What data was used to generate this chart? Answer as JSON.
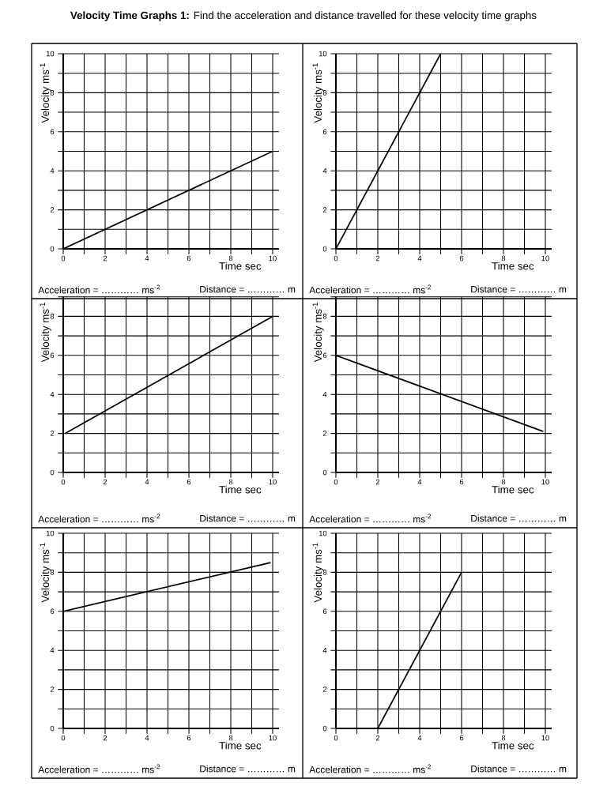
{
  "chart_data": [
    {
      "type": "line",
      "title": "**Velocity Time Graphs 1:** Find the acceleration and distance travelled for these velocity time graphs",
      "xlabel": "Time  sec",
      "ylabel": "Velocity ms$^{-1}$",
      "grid": true,
      "xlim": [
        0,
        10.3
      ],
      "ylim": [
        0,
        10
      ],
      "xticks": [
        0,
        {
          "value": 1,
          "label": null
        },
        2,
        {
          "value": 3,
          "label": null
        },
        4,
        {
          "value": 5,
          "label": null
        },
        6,
        {
          "value": 7,
          "label": null
        },
        8,
        {
          "value": 9,
          "label": null
        },
        10
      ],
      "yticks": [
        0,
        {
          "value": 1,
          "label": null
        },
        2,
        {
          "value": 3,
          "label": null
        },
        4,
        {
          "value": 5,
          "label": null
        },
        6,
        {
          "value": 7,
          "label": null
        },
        8,
        {
          "value": 9,
          "label": null
        },
        10
      ],
      "series": [
        {
          "color": "#000000",
          "x": [
            0,
            10
          ],
          "values": [
            0,
            5
          ]
        }
      ],
      "annotations": [
        "Acceleration   =   ………… ms$^{-2}$",
        "Distance = ………… m"
      ]
    },
    {
      "type": "line",
      "xlabel": "Time  sec",
      "ylabel": "Velocity ms$^{-1}$",
      "grid": true,
      "xlim": [
        0,
        10.3
      ],
      "ylim": [
        0,
        10
      ],
      "xticks": [
        0,
        {
          "value": 1,
          "label": null
        },
        2,
        {
          "value": 3,
          "label": null
        },
        4,
        {
          "value": 5,
          "label": null
        },
        6,
        {
          "value": 7,
          "label": null
        },
        8,
        {
          "value": 9,
          "label": null
        },
        10
      ],
      "yticks": [
        0,
        {
          "value": 1,
          "label": null
        },
        2,
        {
          "value": 3,
          "label": null
        },
        4,
        {
          "value": 5,
          "label": null
        },
        6,
        {
          "value": 7,
          "label": null
        },
        8,
        {
          "value": 9,
          "label": null
        },
        10
      ],
      "series": [
        {
          "color": "#000000",
          "x": [
            0,
            5
          ],
          "values": [
            0,
            10
          ]
        }
      ],
      "annotations": [
        "Acceleration   =   ………… ms$^{-2}$",
        "Distance = ………… m"
      ]
    },
    {
      "type": "line",
      "xlabel": "Time  sec",
      "ylabel": "Velocity ms$^{-1}$",
      "grid": true,
      "xlim": [
        0,
        10.3
      ],
      "ylim": [
        0,
        9
      ],
      "xticks": [
        0,
        {
          "value": 1,
          "label": null
        },
        2,
        {
          "value": 3,
          "label": null
        },
        4,
        {
          "value": 5,
          "label": null
        },
        6,
        {
          "value": 7,
          "label": null
        },
        8,
        {
          "value": 9,
          "label": null
        },
        10
      ],
      "yticks": [
        0,
        {
          "value": 1,
          "label": null
        },
        2,
        {
          "value": 3,
          "label": null
        },
        4,
        {
          "value": 5,
          "label": null
        },
        6,
        {
          "value": 7,
          "label": null
        },
        8,
        {
          "value": 9,
          "label": null
        }
      ],
      "series": [
        {
          "color": "#000000",
          "x": [
            0.1,
            10
          ],
          "values": [
            2,
            8
          ]
        }
      ],
      "annotations": [
        "Acceleration   =   ………… ms$^{-2}$",
        "Distance = ………… m"
      ]
    },
    {
      "type": "line",
      "xlabel": "Time  sec",
      "ylabel": "Velocity ms$^{-1}$",
      "grid": true,
      "xlim": [
        0,
        10.3
      ],
      "ylim": [
        0,
        9
      ],
      "xticks": [
        0,
        {
          "value": 1,
          "label": null
        },
        2,
        {
          "value": 3,
          "label": null
        },
        4,
        {
          "value": 5,
          "label": null
        },
        6,
        {
          "value": 7,
          "label": null
        },
        8,
        {
          "value": 9,
          "label": null
        },
        10
      ],
      "yticks": [
        0,
        {
          "value": 1,
          "label": null
        },
        2,
        {
          "value": 3,
          "label": null
        },
        4,
        {
          "value": 5,
          "label": null
        },
        6,
        {
          "value": 7,
          "label": null
        },
        8,
        {
          "value": 9,
          "label": null
        }
      ],
      "series": [
        {
          "color": "#000000",
          "x": [
            0,
            9.9
          ],
          "values": [
            6,
            2.1
          ]
        }
      ],
      "annotations": [
        "Acceleration   =   ………… ms$^{-2}$",
        "Distance = ………… m"
      ]
    },
    {
      "type": "line",
      "xlabel": "Time  sec",
      "ylabel": "Velocity ms$^{-1}$",
      "grid": true,
      "xlim": [
        0,
        10.3
      ],
      "ylim": [
        0,
        10
      ],
      "xticks": [
        0,
        {
          "value": 1,
          "label": null
        },
        2,
        {
          "value": 3,
          "label": null
        },
        4,
        {
          "value": 5,
          "label": null
        },
        6,
        {
          "value": 7,
          "label": null
        },
        8,
        {
          "value": 9,
          "label": null
        },
        10
      ],
      "yticks": [
        0,
        {
          "value": 1,
          "label": null
        },
        2,
        {
          "value": 3,
          "label": null
        },
        4,
        {
          "value": 5,
          "label": null
        },
        6,
        {
          "value": 7,
          "label": null
        },
        8,
        {
          "value": 9,
          "label": null
        },
        10
      ],
      "series": [
        {
          "color": "#000000",
          "x": [
            0,
            9.9
          ],
          "values": [
            6,
            8.5
          ]
        }
      ],
      "annotations": [
        "Acceleration   =   ………… ms$^{-2}$",
        "Distance = ………… m"
      ]
    },
    {
      "type": "line",
      "xlabel": "Time  sec",
      "ylabel": "Velocity ms$^{-1}$",
      "grid": true,
      "xlim": [
        0,
        10.3
      ],
      "ylim": [
        0,
        10
      ],
      "xticks": [
        0,
        {
          "value": 1,
          "label": null
        },
        2,
        {
          "value": 3,
          "label": null
        },
        4,
        {
          "value": 5,
          "label": null
        },
        6,
        {
          "value": 7,
          "label": null
        },
        8,
        {
          "value": 9,
          "label": null
        },
        10
      ],
      "yticks": [
        0,
        {
          "value": 1,
          "label": null
        },
        2,
        {
          "value": 3,
          "label": null
        },
        4,
        {
          "value": 5,
          "label": null
        },
        6,
        {
          "value": 7,
          "label": null
        },
        8,
        {
          "value": 9,
          "label": null
        },
        10
      ],
      "series": [
        {
          "color": "#000000",
          "x": [
            2,
            6
          ],
          "values": [
            0,
            8
          ]
        }
      ],
      "annotations": [
        "Acceleration   =   ………… ms$^{-2}$",
        "Distance = ………… m"
      ]
    }
  ]
}
